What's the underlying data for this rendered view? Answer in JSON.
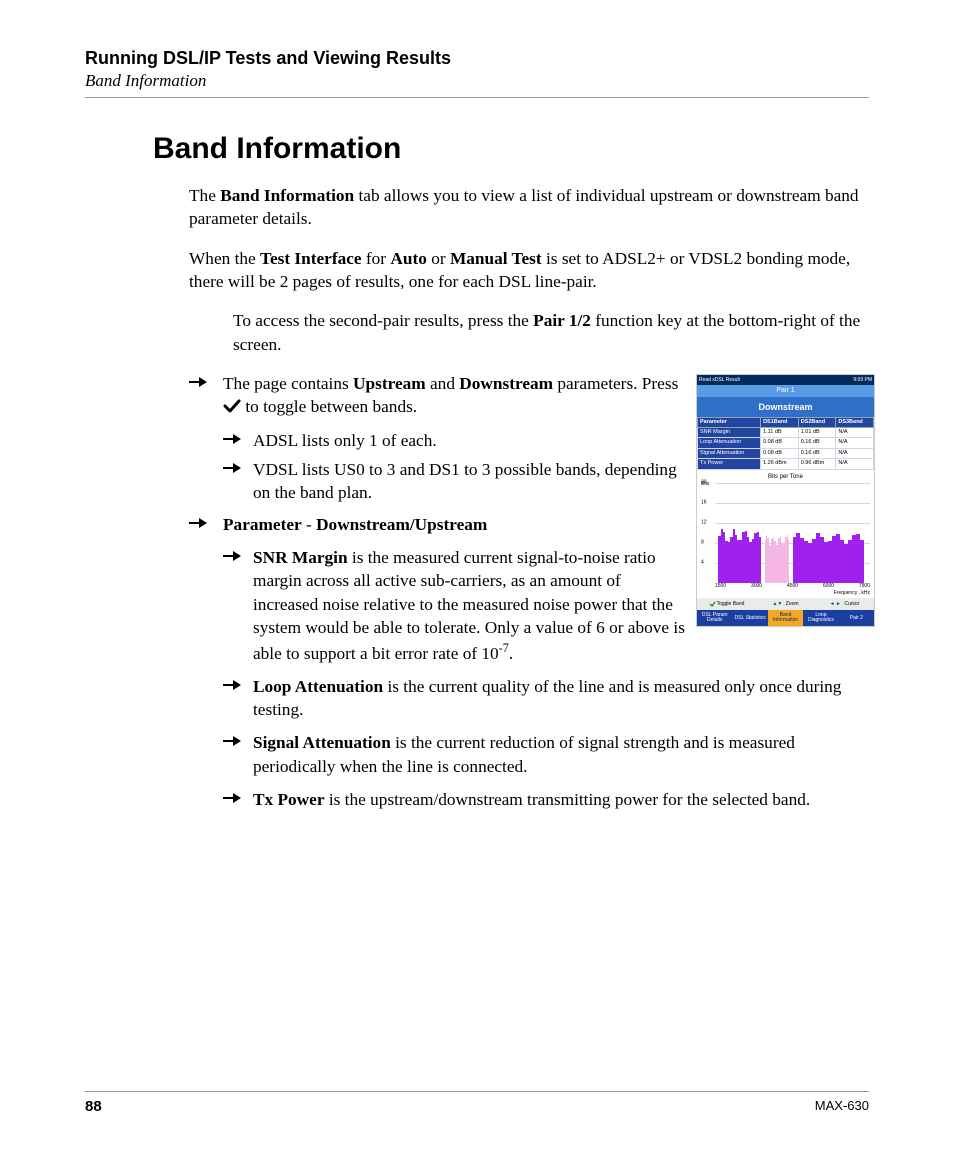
{
  "header": {
    "chapter": "Running DSL/IP Tests and Viewing Results",
    "section": "Band Information"
  },
  "title": "Band Information",
  "paragraphs": {
    "p1_pre": "The ",
    "p1_b1": "Band Information",
    "p1_post": " tab allows you to view a list of individual upstream or downstream band parameter details.",
    "p2_a": "When the ",
    "p2_b1": "Test Interface",
    "p2_mid1": " for ",
    "p2_b2": "Auto",
    "p2_mid2": " or ",
    "p2_b3": "Manual Test",
    "p2_post": " is set to ADSL2+ or VDSL2 bonding mode, there will be 2 pages of results, one for each DSL line-pair.",
    "p3_pre": "To access the second-pair results, press the ",
    "p3_b1": "Pair 1/2",
    "p3_post": " function key at the bottom-right of the screen."
  },
  "bullets": {
    "b1_pre": "The page contains ",
    "b1_b1": "Upstream",
    "b1_mid": " and ",
    "b1_b2": "Downstream",
    "b1_post1": " parameters. Press ",
    "b1_post2": " to toggle between bands.",
    "b1_sub1": "ADSL lists only 1 of each.",
    "b1_sub2": "VDSL lists US0 to 3 and DS1 to 3 possible bands, depending on the band plan.",
    "b2_b1": "Parameter",
    "b2_mid": " - ",
    "b2_b2": "Downstream/Upstream",
    "b2s1_b": "SNR Margin",
    "b2s1_t": " is the measured current signal-to-noise ratio margin across all active sub-carriers, as an amount of increased noise relative to the measured noise power that the system would be able to tolerate. Only a value of 6 or above is able to support a bit error rate of 10",
    "b2s1_sup": "-7",
    "b2s1_end": ".",
    "b2s2_b": "Loop Attenuation",
    "b2s2_t": " is the current quality of the line and is measured only once during testing.",
    "b2s3_b": "Signal Attenuation",
    "b2s3_t": " is the current reduction of signal strength and is measured periodically when the line is connected.",
    "b2s4_b": "Tx Power",
    "b2s4_t": " is the upstream/downstream transmitting power for the selected band."
  },
  "screenshot": {
    "topbar_left": "Read xDSL Result",
    "topbar_right": "9:09 PM",
    "pair": "Pair 1",
    "direction": "Downstream",
    "table": {
      "headers": [
        "Parameter",
        "DS1Band",
        "DS2Band",
        "DS3Band"
      ],
      "rows": [
        [
          "SNR Margin",
          "1.11 dB",
          "1.01 dB",
          "N/A"
        ],
        [
          "Loop Attenuation",
          "0.08 dB",
          "0.16 dB",
          "N/A"
        ],
        [
          "Signal Attenuation",
          "0.08 dB",
          "0.16 dB",
          "N/A"
        ],
        [
          "Tx Power",
          "1.26 dBm",
          "0.96 dBm",
          "N/A"
        ]
      ]
    },
    "chart": {
      "title": "Bits per Tone",
      "ylabel": "Bits",
      "yticks": [
        "20",
        "16",
        "12",
        "8",
        "4"
      ],
      "xticks": [
        "1500",
        "3000",
        "4500",
        "6000",
        "7500"
      ],
      "xlabel": "Frequency , kHz",
      "bands": [
        {
          "left_pct": 2,
          "width_pct": 28,
          "height_pct": 55,
          "color": "#a020f0"
        },
        {
          "left_pct": 32,
          "width_pct": 16,
          "height_pct": 50,
          "color": "#f5b6e6"
        },
        {
          "left_pct": 50,
          "width_pct": 46,
          "height_pct": 52,
          "color": "#a020f0"
        }
      ]
    },
    "softkeys": {
      "k1": "Toggle Band",
      "k2": "Zoom",
      "k3": "Cursor"
    },
    "tabs": [
      "DSL Param Details",
      "DSL Statistics",
      "Band Information",
      "Loop Diagnostics",
      "Pair 2"
    ]
  },
  "footer": {
    "page": "88",
    "model": "MAX-630"
  },
  "colors": {
    "arrow": "#000000"
  }
}
